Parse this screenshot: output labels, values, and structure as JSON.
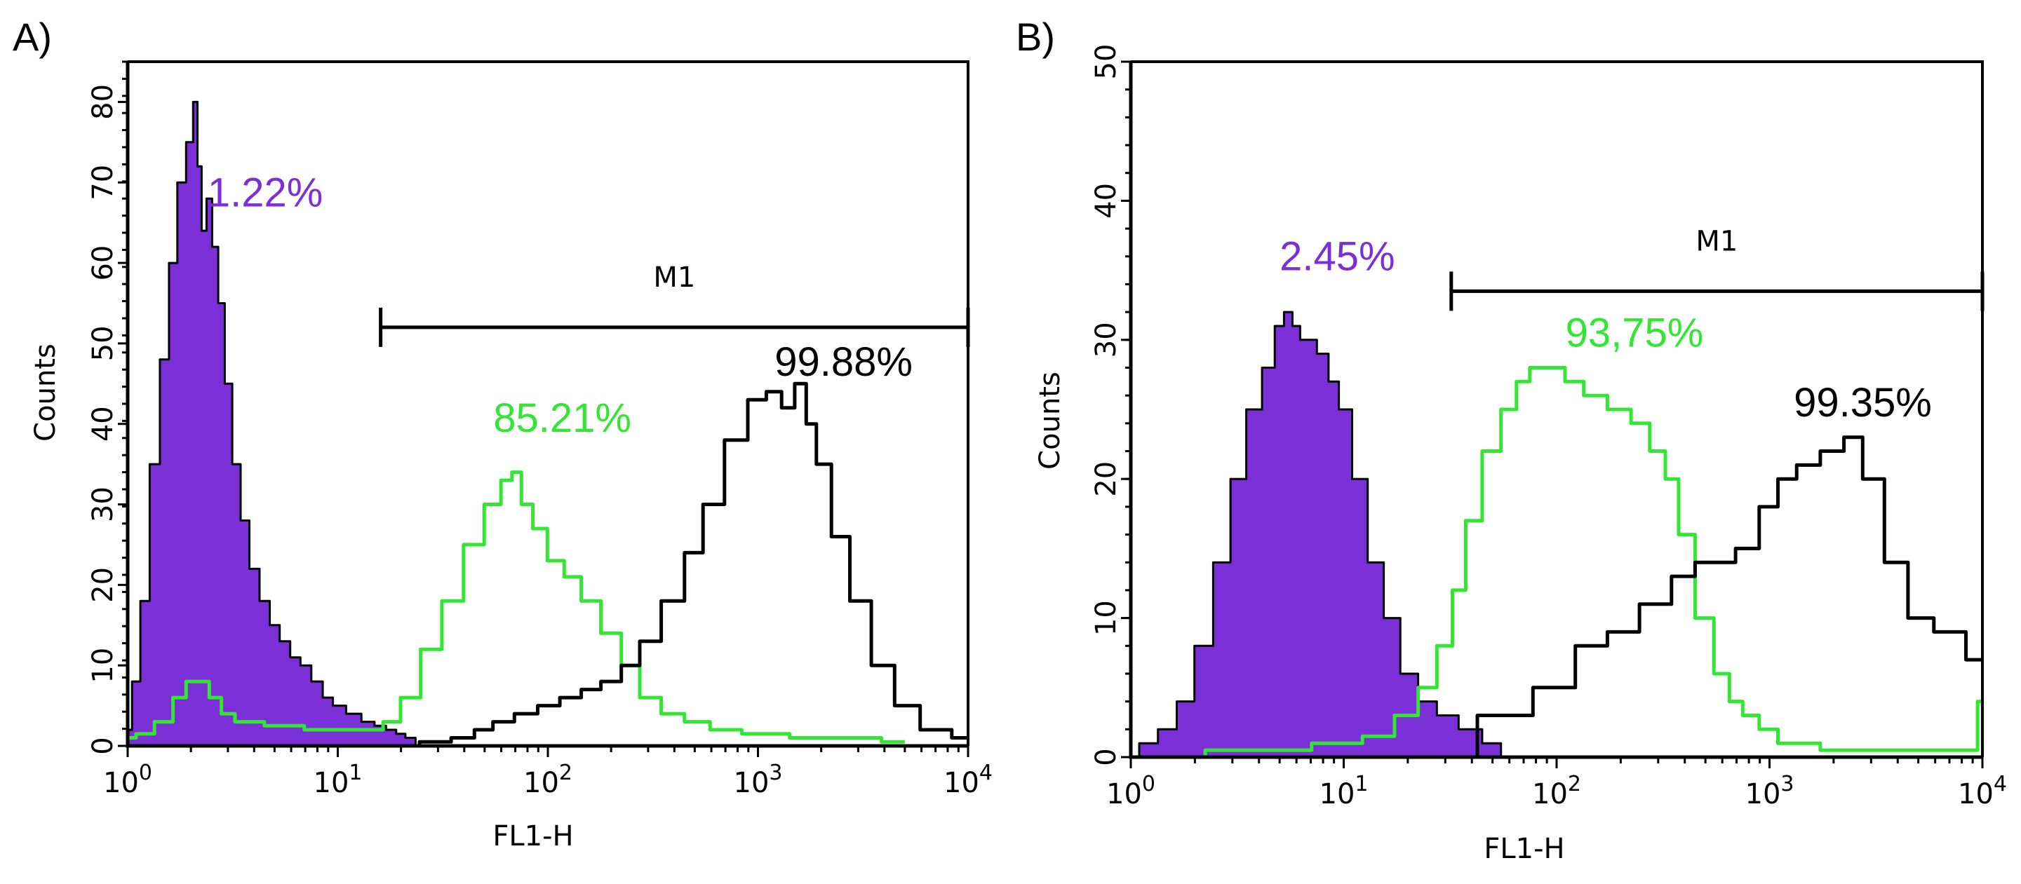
{
  "colors": {
    "purple": "#7b2fd6",
    "green": "#33e633",
    "black": "#000000"
  },
  "chart_data": [
    {
      "type": "area",
      "panel_label": "A)",
      "xscale": "log",
      "xlim": [
        1,
        10000
      ],
      "ylim": [
        0,
        85
      ],
      "xlabel": "FL1-H",
      "ylabel": "Counts",
      "x_ticks": [
        {
          "base": "10",
          "exp": "0"
        },
        {
          "base": "10",
          "exp": "1"
        },
        {
          "base": "10",
          "exp": "2"
        },
        {
          "base": "10",
          "exp": "3"
        },
        {
          "base": "10",
          "exp": "4"
        }
      ],
      "y_ticks": [
        "0",
        "10",
        "20",
        "30",
        "40",
        "50",
        "60",
        "70",
        "80"
      ],
      "gate": {
        "label": "M1",
        "x_start": 16,
        "x_end": 10000,
        "y": 52
      },
      "series": [
        {
          "name": "purple (filled)",
          "color": "purple",
          "fill": true,
          "x": [
            1.0,
            1.1,
            1.2,
            1.35,
            1.5,
            1.65,
            1.8,
            2.0,
            2.1,
            2.2,
            2.3,
            2.45,
            2.6,
            2.8,
            3.0,
            3.3,
            3.6,
            4.0,
            4.5,
            5.0,
            5.6,
            6.3,
            7.0,
            8.0,
            9.0,
            10,
            12,
            14,
            16,
            18,
            20,
            22,
            25
          ],
          "y": [
            2,
            8,
            18,
            35,
            48,
            60,
            70,
            75,
            80,
            72,
            64,
            68,
            62,
            55,
            45,
            35,
            28,
            22,
            18,
            15,
            13,
            11,
            10,
            8,
            6,
            5,
            4,
            3,
            2.5,
            2,
            1.5,
            1,
            0
          ]
        },
        {
          "name": "green",
          "color": "green",
          "fill": false,
          "x": [
            1.0,
            1.2,
            1.5,
            1.8,
            2.0,
            2.3,
            2.6,
            3.0,
            3.5,
            4.0,
            5.0,
            6.0,
            8.0,
            10,
            12,
            15,
            18,
            22,
            28,
            35,
            45,
            55,
            65,
            70,
            80,
            90,
            110,
            130,
            160,
            200,
            250,
            300,
            400,
            500,
            700,
            1000,
            2000,
            3000,
            5000
          ],
          "y": [
            1,
            1.5,
            3,
            6,
            8,
            8,
            6,
            4,
            3,
            3,
            2.5,
            2.5,
            2,
            2,
            2,
            2,
            3,
            6,
            12,
            18,
            25,
            30,
            33,
            34,
            30,
            27,
            23,
            21,
            18,
            14,
            10,
            6,
            4,
            3,
            2,
            1.5,
            1,
            1,
            0.5
          ]
        },
        {
          "name": "black",
          "color": "black",
          "fill": false,
          "x": [
            20,
            30,
            40,
            50,
            60,
            80,
            100,
            130,
            160,
            200,
            250,
            300,
            400,
            500,
            600,
            800,
            1000,
            1200,
            1400,
            1600,
            1800,
            2000,
            2500,
            3000,
            4000,
            5000,
            7000,
            10000
          ],
          "y": [
            0,
            0.5,
            1,
            2,
            3,
            4,
            5,
            6,
            7,
            8,
            10,
            13,
            18,
            24,
            30,
            38,
            43,
            44,
            42,
            45,
            40,
            35,
            26,
            18,
            10,
            5,
            2,
            1
          ]
        }
      ],
      "annotations": [
        {
          "text": "1.22%",
          "color": "purple",
          "x": 2.4,
          "y": 67
        },
        {
          "text": "85.21%",
          "color": "green",
          "x": 55,
          "y": 39
        },
        {
          "text": "99.88%",
          "color": "black",
          "x": 1200,
          "y": 46
        }
      ]
    },
    {
      "type": "area",
      "panel_label": "B)",
      "xscale": "log",
      "xlim": [
        1,
        10000
      ],
      "ylim": [
        0,
        50
      ],
      "xlabel": "FL1-H",
      "ylabel": "Counts",
      "x_ticks": [
        {
          "base": "10",
          "exp": "0"
        },
        {
          "base": "10",
          "exp": "1"
        },
        {
          "base": "10",
          "exp": "2"
        },
        {
          "base": "10",
          "exp": "3"
        },
        {
          "base": "10",
          "exp": "4"
        }
      ],
      "y_ticks": [
        "0",
        "10",
        "20",
        "30",
        "40",
        "50"
      ],
      "gate": {
        "label": "M1",
        "x_start": 32,
        "x_end": 10000,
        "y": 33.5
      },
      "series": [
        {
          "name": "purple (filled)",
          "color": "purple",
          "fill": true,
          "x": [
            1.0,
            1.2,
            1.5,
            1.8,
            2.2,
            2.7,
            3.2,
            3.8,
            4.5,
            5.0,
            5.5,
            6.0,
            6.5,
            7.0,
            8.0,
            9.0,
            10,
            12,
            14,
            17,
            20,
            25,
            30,
            40,
            50,
            60
          ],
          "y": [
            0,
            1,
            2,
            4,
            8,
            14,
            20,
            25,
            28,
            31,
            32,
            31,
            30,
            30,
            29,
            27,
            25,
            20,
            14,
            10,
            6,
            4,
            3,
            2,
            1,
            0
          ]
        },
        {
          "name": "green",
          "color": "green",
          "fill": false,
          "x": [
            1.0,
            5.0,
            10,
            15,
            20,
            25,
            30,
            35,
            40,
            50,
            60,
            70,
            80,
            90,
            100,
            120,
            150,
            200,
            250,
            300,
            350,
            400,
            500,
            600,
            700,
            800,
            1000,
            1200,
            1500,
            2000,
            3000,
            5000,
            9000,
            10000
          ],
          "y": [
            0,
            0.5,
            1,
            1.5,
            3,
            5,
            8,
            12,
            17,
            22,
            25,
            27,
            28,
            28,
            28,
            27,
            26,
            25,
            24,
            22,
            20,
            16,
            10,
            6,
            4,
            3,
            2,
            1,
            1,
            0.5,
            0.5,
            0.5,
            0.5,
            4
          ]
        },
        {
          "name": "black",
          "color": "black",
          "fill": false,
          "x": [
            30,
            60,
            100,
            150,
            200,
            300,
            400,
            500,
            600,
            800,
            1000,
            1200,
            1500,
            2000,
            2500,
            3000,
            4000,
            5000,
            7000,
            10000
          ],
          "y": [
            0,
            3,
            5,
            8,
            9,
            11,
            13,
            14,
            14,
            15,
            18,
            20,
            21,
            22,
            23,
            20,
            14,
            10,
            9,
            7
          ]
        }
      ],
      "annotations": [
        {
          "text": "2.45%",
          "color": "purple",
          "x": 5.0,
          "y": 35
        },
        {
          "text": "93,75%",
          "color": "green",
          "x": 110,
          "y": 29.5
        },
        {
          "text": "99.35%",
          "color": "black",
          "x": 1300,
          "y": 24.5
        }
      ]
    }
  ]
}
